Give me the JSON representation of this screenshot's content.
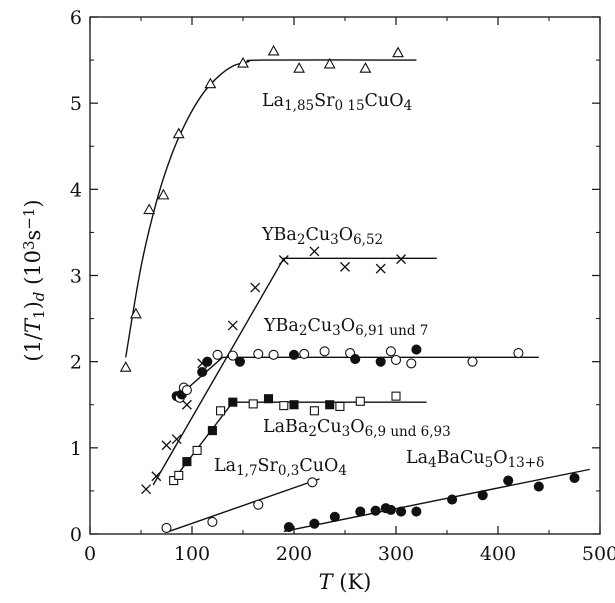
{
  "chart_data": {
    "type": "scatter",
    "xlabel": "T (K)",
    "ylabel": "(1/T1)d (10^3 s^-1)",
    "xlim": [
      0,
      500
    ],
    "ylim": [
      0,
      6
    ],
    "x_ticks": [
      "0",
      "100",
      "200",
      "300",
      "400",
      "500"
    ],
    "y_ticks": [
      "0",
      "1",
      "2",
      "3",
      "4",
      "5",
      "6"
    ],
    "grid": false,
    "legend": "none",
    "series": [
      {
        "name": "La1,85Sr0 15CuO4",
        "marker": "triangle-open",
        "x": [
          35,
          45,
          58,
          72,
          87,
          118,
          150,
          180,
          205,
          235,
          270,
          302
        ],
        "y": [
          1.93,
          2.55,
          3.76,
          3.93,
          4.64,
          5.22,
          5.46,
          5.6,
          5.4,
          5.45,
          5.4,
          5.58
        ],
        "fit": {
          "x": [
            35,
            50,
            65,
            80,
            95,
            110,
            125,
            140,
            155,
            170,
            320
          ],
          "y": [
            2.05,
            3.1,
            3.85,
            4.4,
            4.8,
            5.1,
            5.3,
            5.43,
            5.48,
            5.5,
            5.5
          ]
        }
      },
      {
        "name": "YBa2Cu3O6,52",
        "marker": "cross",
        "x": [
          55,
          65,
          75,
          85,
          95,
          110,
          140,
          162,
          190,
          220,
          250,
          285,
          305
        ],
        "y": [
          0.52,
          0.67,
          1.03,
          1.1,
          1.5,
          1.98,
          2.42,
          2.86,
          3.18,
          3.28,
          3.1,
          3.08,
          3.19
        ],
        "fit": {
          "x": [
            62,
            190,
            340
          ],
          "y": [
            0.57,
            3.2,
            3.2
          ]
        }
      },
      {
        "name": "YBa2Cu3O6,91 und 7",
        "marker": "circle-mixed",
        "x": [
          85,
          88,
          90,
          92,
          95,
          110,
          115,
          125,
          140,
          147,
          165,
          180,
          200,
          210,
          230,
          255,
          260,
          285,
          295,
          300,
          315,
          320,
          375,
          420
        ],
        "y": [
          1.6,
          1.58,
          1.62,
          1.7,
          1.67,
          1.88,
          2.0,
          2.08,
          2.07,
          2.0,
          2.09,
          2.08,
          2.08,
          2.09,
          2.12,
          2.1,
          2.03,
          2.0,
          2.12,
          2.02,
          1.98,
          2.14,
          2.0,
          2.1
        ],
        "filled": [
          true,
          false,
          true,
          false,
          false,
          true,
          true,
          false,
          false,
          true,
          false,
          false,
          true,
          false,
          false,
          false,
          true,
          true,
          false,
          false,
          false,
          true,
          false,
          false
        ],
        "fit": {
          "x": [
            85,
            130,
            440
          ],
          "y": [
            1.58,
            2.05,
            2.05
          ]
        }
      },
      {
        "name": "LaBa2Cu3O6,9 und 6,93",
        "marker": "square-mixed",
        "x": [
          82,
          87,
          95,
          105,
          120,
          128,
          140,
          160,
          175,
          190,
          200,
          220,
          235,
          245,
          265,
          300
        ],
        "y": [
          0.62,
          0.68,
          0.84,
          0.97,
          1.2,
          1.43,
          1.53,
          1.51,
          1.57,
          1.49,
          1.5,
          1.43,
          1.5,
          1.48,
          1.54,
          1.6
        ],
        "filled": [
          false,
          false,
          true,
          false,
          true,
          false,
          true,
          false,
          true,
          false,
          true,
          false,
          true,
          false,
          false,
          false
        ],
        "fit": {
          "x": [
            80,
            140,
            330
          ],
          "y": [
            0.6,
            1.53,
            1.53
          ]
        }
      },
      {
        "name": "La1,7Sr0,3CuO4",
        "marker": "circle-open",
        "x": [
          75,
          120,
          165,
          218
        ],
        "y": [
          0.07,
          0.14,
          0.34,
          0.6
        ],
        "fit": {
          "x": [
            75,
            225
          ],
          "y": [
            0.02,
            0.64
          ]
        }
      },
      {
        "name": "La4BaCu5O13+δ",
        "marker": "circle-filled",
        "x": [
          195,
          220,
          240,
          265,
          280,
          290,
          295,
          305,
          320,
          355,
          385,
          410,
          440,
          475
        ],
        "y": [
          0.08,
          0.12,
          0.2,
          0.26,
          0.27,
          0.3,
          0.28,
          0.26,
          0.26,
          0.4,
          0.45,
          0.62,
          0.55,
          0.65
        ],
        "fit": {
          "x": [
            190,
            490
          ],
          "y": [
            0.03,
            0.75
          ]
        }
      }
    ],
    "annotations": [
      {
        "id": "lsco185",
        "parts": [
          [
            "La",
            ""
          ],
          [
            "1,85",
            "sub"
          ],
          [
            "Sr",
            ""
          ],
          [
            "0 15",
            "sub"
          ],
          [
            "CuO",
            ""
          ],
          [
            "4",
            "sub"
          ]
        ]
      },
      {
        "id": "ybco652",
        "parts": [
          [
            "YBa",
            ""
          ],
          [
            "2",
            "sub"
          ],
          [
            "Cu",
            ""
          ],
          [
            "3",
            "sub"
          ],
          [
            "O",
            ""
          ],
          [
            "6,52",
            "sub"
          ]
        ]
      },
      {
        "id": "ybco691",
        "parts": [
          [
            "YBa",
            ""
          ],
          [
            "2",
            "sub"
          ],
          [
            "Cu",
            ""
          ],
          [
            "3",
            "sub"
          ],
          [
            "O",
            ""
          ],
          [
            "6,91 und 7",
            "sub"
          ]
        ]
      },
      {
        "id": "labco",
        "parts": [
          [
            "LaBa",
            ""
          ],
          [
            "2",
            "sub"
          ],
          [
            "Cu",
            ""
          ],
          [
            "3",
            "sub"
          ],
          [
            "O",
            ""
          ],
          [
            "6,9 und 6,93",
            "sub"
          ]
        ]
      },
      {
        "id": "lsco17",
        "parts": [
          [
            "La",
            ""
          ],
          [
            "1,7",
            "sub"
          ],
          [
            "Sr",
            ""
          ],
          [
            "0,3",
            "sub"
          ],
          [
            "CuO",
            ""
          ],
          [
            "4",
            "sub"
          ]
        ]
      },
      {
        "id": "la4ba",
        "parts": [
          [
            "La",
            ""
          ],
          [
            "4",
            "sub"
          ],
          [
            "BaCu",
            ""
          ],
          [
            "5",
            "sub"
          ],
          [
            "O",
            ""
          ],
          [
            "13+δ",
            "sub"
          ]
        ]
      }
    ]
  }
}
